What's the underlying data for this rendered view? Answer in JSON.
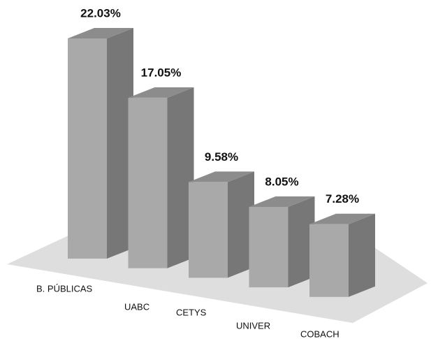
{
  "chart_data": {
    "type": "bar3d",
    "categories": [
      "B. PÚBLICAS",
      "UABC",
      "CETYS",
      "UNIVER",
      "COBACH"
    ],
    "values": [
      22.03,
      17.05,
      9.58,
      8.05,
      7.28
    ],
    "value_labels": [
      "22.03%",
      "17.05%",
      "9.58%",
      "8.05%",
      "7.28%"
    ],
    "color": "#a9a9a9"
  }
}
